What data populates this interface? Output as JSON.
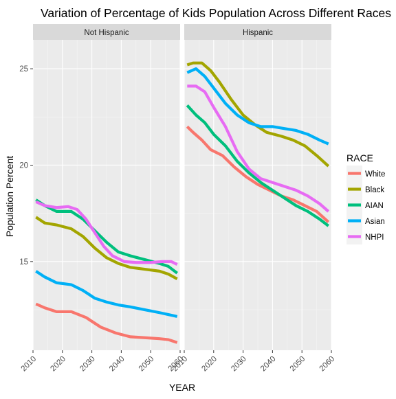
{
  "chart_data": {
    "type": "line",
    "title": "Variation of Percentage of Kids Population Across Different Races",
    "xlabel": "YEAR",
    "ylabel": "Population Percent",
    "xlim": [
      2010,
      2060
    ],
    "ylim": [
      10.4,
      26.5
    ],
    "x_ticks": [
      2010,
      2020,
      2030,
      2040,
      2050,
      2060
    ],
    "y_ticks": [
      15,
      20,
      25
    ],
    "grid": true,
    "facets": [
      "Not Hispanic",
      "Hispanic"
    ],
    "legend": {
      "title": "RACE",
      "position": "right"
    },
    "series": [
      {
        "name": "White",
        "color": "#F8766D",
        "values": {
          "Not Hispanic": [
            [
              2011,
              12.8
            ],
            [
              2014,
              12.6
            ],
            [
              2018,
              12.4
            ],
            [
              2023,
              12.4
            ],
            [
              2028,
              12.1
            ],
            [
              2033,
              11.6
            ],
            [
              2038,
              11.3
            ],
            [
              2043,
              11.1
            ],
            [
              2048,
              11.05
            ],
            [
              2053,
              11.0
            ],
            [
              2056,
              10.95
            ],
            [
              2059,
              10.8
            ]
          ],
          "Hispanic": [
            [
              2011,
              22.0
            ],
            [
              2013,
              21.7
            ],
            [
              2016,
              21.3
            ],
            [
              2019,
              20.8
            ],
            [
              2023,
              20.5
            ],
            [
              2027,
              19.9
            ],
            [
              2031,
              19.4
            ],
            [
              2035,
              19.0
            ],
            [
              2039,
              18.7
            ],
            [
              2043,
              18.4
            ],
            [
              2047,
              18.2
            ],
            [
              2051,
              17.9
            ],
            [
              2055,
              17.6
            ],
            [
              2059,
              17.05
            ]
          ]
        }
      },
      {
        "name": "Black",
        "color": "#A3A500",
        "values": {
          "Not Hispanic": [
            [
              2011,
              17.3
            ],
            [
              2014,
              17.0
            ],
            [
              2018,
              16.9
            ],
            [
              2023,
              16.7
            ],
            [
              2027,
              16.3
            ],
            [
              2031,
              15.7
            ],
            [
              2035,
              15.2
            ],
            [
              2039,
              14.9
            ],
            [
              2043,
              14.7
            ],
            [
              2048,
              14.6
            ],
            [
              2053,
              14.5
            ],
            [
              2056,
              14.35
            ],
            [
              2059,
              14.1
            ]
          ],
          "Hispanic": [
            [
              2011,
              25.2
            ],
            [
              2013,
              25.3
            ],
            [
              2016,
              25.3
            ],
            [
              2019,
              24.9
            ],
            [
              2022,
              24.3
            ],
            [
              2026,
              23.4
            ],
            [
              2030,
              22.6
            ],
            [
              2034,
              22.1
            ],
            [
              2038,
              21.7
            ],
            [
              2043,
              21.5
            ],
            [
              2047,
              21.3
            ],
            [
              2051,
              21.0
            ],
            [
              2055,
              20.5
            ],
            [
              2059,
              19.95
            ]
          ]
        }
      },
      {
        "name": "AIAN",
        "color": "#00BF7D",
        "values": {
          "Not Hispanic": [
            [
              2011,
              18.2
            ],
            [
              2014,
              17.9
            ],
            [
              2018,
              17.6
            ],
            [
              2023,
              17.6
            ],
            [
              2027,
              17.2
            ],
            [
              2031,
              16.6
            ],
            [
              2035,
              16.0
            ],
            [
              2039,
              15.5
            ],
            [
              2043,
              15.3
            ],
            [
              2048,
              15.1
            ],
            [
              2053,
              14.9
            ],
            [
              2056,
              14.75
            ],
            [
              2059,
              14.4
            ]
          ],
          "Hispanic": [
            [
              2011,
              23.1
            ],
            [
              2014,
              22.6
            ],
            [
              2017,
              22.2
            ],
            [
              2020,
              21.6
            ],
            [
              2024,
              21.0
            ],
            [
              2028,
              20.2
            ],
            [
              2032,
              19.6
            ],
            [
              2036,
              19.1
            ],
            [
              2040,
              18.7
            ],
            [
              2044,
              18.3
            ],
            [
              2048,
              17.9
            ],
            [
              2052,
              17.6
            ],
            [
              2056,
              17.2
            ],
            [
              2059,
              16.85
            ]
          ]
        }
      },
      {
        "name": "Asian",
        "color": "#00B0F6",
        "values": {
          "Not Hispanic": [
            [
              2011,
              14.5
            ],
            [
              2014,
              14.2
            ],
            [
              2018,
              13.9
            ],
            [
              2023,
              13.8
            ],
            [
              2027,
              13.5
            ],
            [
              2031,
              13.1
            ],
            [
              2035,
              12.9
            ],
            [
              2039,
              12.75
            ],
            [
              2043,
              12.65
            ],
            [
              2048,
              12.5
            ],
            [
              2053,
              12.35
            ],
            [
              2056,
              12.25
            ],
            [
              2059,
              12.15
            ]
          ],
          "Hispanic": [
            [
              2011,
              24.8
            ],
            [
              2014,
              25.0
            ],
            [
              2017,
              24.6
            ],
            [
              2020,
              24.0
            ],
            [
              2024,
              23.2
            ],
            [
              2028,
              22.6
            ],
            [
              2032,
              22.2
            ],
            [
              2036,
              22.0
            ],
            [
              2040,
              22.0
            ],
            [
              2044,
              21.9
            ],
            [
              2048,
              21.8
            ],
            [
              2052,
              21.6
            ],
            [
              2056,
              21.3
            ],
            [
              2059,
              21.1
            ]
          ]
        }
      },
      {
        "name": "NHPI",
        "color": "#E76BF3",
        "values": {
          "Not Hispanic": [
            [
              2011,
              18.1
            ],
            [
              2014,
              17.9
            ],
            [
              2018,
              17.8
            ],
            [
              2022,
              17.85
            ],
            [
              2025,
              17.7
            ],
            [
              2028,
              17.2
            ],
            [
              2031,
              16.5
            ],
            [
              2034,
              15.8
            ],
            [
              2037,
              15.3
            ],
            [
              2041,
              15.0
            ],
            [
              2045,
              14.95
            ],
            [
              2050,
              14.95
            ],
            [
              2054,
              15.0
            ],
            [
              2057,
              15.0
            ],
            [
              2059,
              14.85
            ]
          ],
          "Hispanic": [
            [
              2011,
              24.1
            ],
            [
              2014,
              24.1
            ],
            [
              2017,
              23.8
            ],
            [
              2020,
              23.0
            ],
            [
              2024,
              22.0
            ],
            [
              2028,
              20.7
            ],
            [
              2032,
              19.8
            ],
            [
              2036,
              19.3
            ],
            [
              2040,
              19.1
            ],
            [
              2044,
              18.9
            ],
            [
              2048,
              18.7
            ],
            [
              2052,
              18.4
            ],
            [
              2056,
              18.0
            ],
            [
              2059,
              17.6
            ]
          ]
        }
      }
    ]
  }
}
